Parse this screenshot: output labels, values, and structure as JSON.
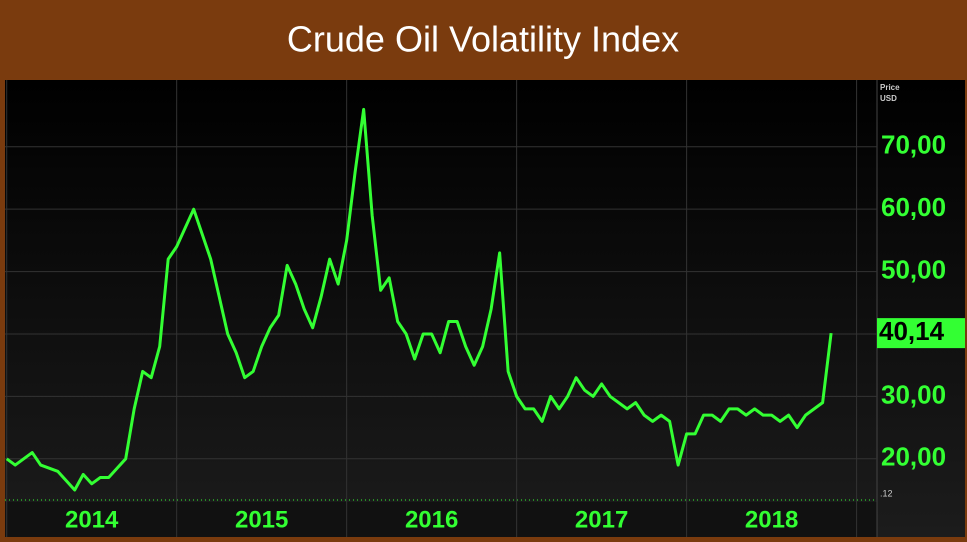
{
  "chart_data": {
    "type": "line",
    "title": "Crude Oil Volatility Index",
    "y_axis_label": [
      "Price",
      "USD"
    ],
    "corner_label": ".12",
    "last_label": {
      "value": 40.14,
      "label": "40,14"
    },
    "series": [
      {
        "color": "#33ff33",
        "x": [
          2014.0,
          2014.05,
          2014.1,
          2014.15,
          2014.2,
          2014.25,
          2014.3,
          2014.35,
          2014.4,
          2014.45,
          2014.5,
          2014.55,
          2014.6,
          2014.65,
          2014.7,
          2014.75,
          2014.8,
          2014.85,
          2014.9,
          2014.95,
          2015.0,
          2015.05,
          2015.1,
          2015.15,
          2015.2,
          2015.25,
          2015.3,
          2015.35,
          2015.4,
          2015.45,
          2015.5,
          2015.55,
          2015.6,
          2015.65,
          2015.7,
          2015.75,
          2015.8,
          2015.85,
          2015.9,
          2015.95,
          2016.0,
          2016.05,
          2016.1,
          2016.15,
          2016.2,
          2016.25,
          2016.3,
          2016.35,
          2016.4,
          2016.45,
          2016.5,
          2016.55,
          2016.6,
          2016.65,
          2016.7,
          2016.75,
          2016.8,
          2016.85,
          2016.9,
          2016.95,
          2017.0,
          2017.05,
          2017.1,
          2017.15,
          2017.2,
          2017.25,
          2017.3,
          2017.35,
          2017.4,
          2017.45,
          2017.5,
          2017.55,
          2017.6,
          2017.65,
          2017.7,
          2017.75,
          2017.8,
          2017.85,
          2017.9,
          2017.95,
          2018.0,
          2018.05,
          2018.1,
          2018.15,
          2018.2,
          2018.25,
          2018.3,
          2018.35,
          2018.4,
          2018.45,
          2018.5,
          2018.55,
          2018.6,
          2018.65,
          2018.7,
          2018.75,
          2018.8,
          2018.85
        ],
        "values": [
          20,
          19,
          20,
          21,
          19,
          18.5,
          18,
          16.5,
          15,
          17.5,
          16,
          17,
          17,
          18.5,
          20,
          28,
          34,
          33,
          38,
          52,
          54,
          57,
          60,
          56,
          52,
          46,
          40,
          37,
          33,
          34,
          38,
          41,
          43,
          51,
          48,
          44,
          41,
          46,
          52,
          48,
          55,
          66,
          76,
          59,
          47,
          49,
          42,
          40,
          36,
          40,
          40,
          37,
          42,
          42,
          38,
          35,
          38,
          44,
          53,
          34,
          30,
          28,
          28,
          26,
          30,
          28,
          30,
          33,
          31,
          30,
          32,
          30,
          29,
          28,
          29,
          27,
          26,
          27,
          26,
          19,
          24,
          24,
          27,
          27,
          26,
          28,
          28,
          27,
          28,
          27,
          27,
          26,
          27,
          25,
          27,
          28,
          29,
          40.14
        ]
      }
    ],
    "xlim": [
      2013.99,
      2019.12
    ],
    "xticks": [
      2014,
      2015,
      2016,
      2017,
      2018,
      2019
    ],
    "year_labels": [
      "2014",
      "2015",
      "2016",
      "2017",
      "2018"
    ],
    "ylim": [
      13.4,
      80.7
    ],
    "yticks": [
      {
        "value": 20,
        "label": "20,00"
      },
      {
        "value": 30,
        "label": "30,00"
      },
      {
        "value": 40,
        "label": "40,00"
      },
      {
        "value": 50,
        "label": "50,00"
      },
      {
        "value": 60,
        "label": "60,00"
      },
      {
        "value": 70,
        "label": "70,00"
      }
    ],
    "grid": true
  }
}
